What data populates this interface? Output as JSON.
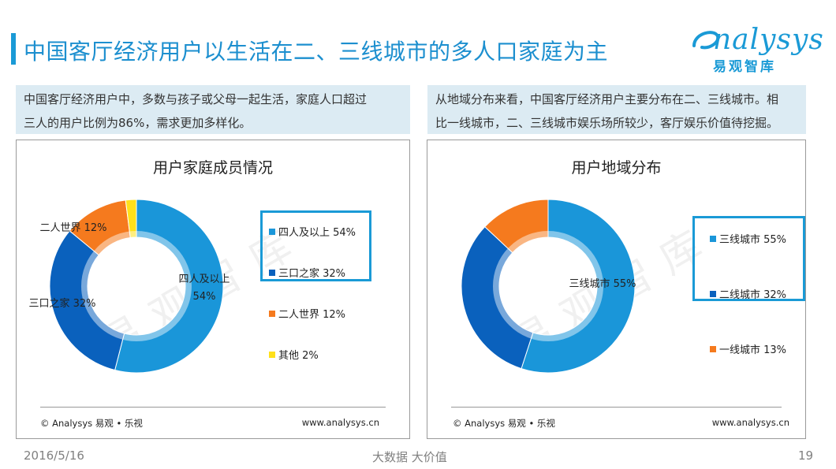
{
  "page": {
    "title": "中国客厅经济用户以生活在二、三线城市的多人口家庭为主",
    "logo_word": "nalysys",
    "logo_sub": "易观智库"
  },
  "left_desc": {
    "line1": "中国客厅经济用户中，多数与孩子或父母一起生活，家庭人口超过",
    "line2": "三人的用户比例为86%，需求更加多样化。"
  },
  "right_desc": {
    "line1": "从地域分布来看，中国客厅经济用户主要分布在二、三线城市。相",
    "line2": "比一线城市，二、三线城市娱乐场所较少，客厅娱乐价值待挖掘。"
  },
  "chart_data": [
    {
      "type": "pie",
      "style": "donut",
      "title": "用户家庭成员情况",
      "slices": [
        {
          "label": "四人及以上",
          "value": 54,
          "value_label": "54%",
          "color": "#1a96d9",
          "legend": "四人及以上  54%",
          "data_label": [
            "四人及以上",
            "54%"
          ]
        },
        {
          "label": "三口之家",
          "value": 32,
          "value_label": "32%",
          "color": "#0a61bd",
          "legend": "三口之家  32%",
          "data_label": [
            "三口之家  32%"
          ]
        },
        {
          "label": "二人世界",
          "value": 12,
          "value_label": "12%",
          "color": "#f57a1e",
          "legend": "二人世界  12%",
          "data_label": [
            "二人世界  12%"
          ]
        },
        {
          "label": "其他",
          "value": 2,
          "value_label": "2%",
          "color": "#ffe01a",
          "legend": "其他  2%",
          "data_label": []
        }
      ],
      "legend_position": "right",
      "source": "© Analysys 易观 • 乐视",
      "site": "www.analysys.cn"
    },
    {
      "type": "pie",
      "style": "donut",
      "title": "用户地域分布",
      "slices": [
        {
          "label": "三线城市",
          "value": 55,
          "value_label": "55%",
          "color": "#1a96d9",
          "legend": "三线城市  55%",
          "data_label": [
            "三线城市  55%"
          ]
        },
        {
          "label": "二线城市",
          "value": 32,
          "value_label": "32%",
          "color": "#0a61bd",
          "legend": "二线城市  32%",
          "data_label": []
        },
        {
          "label": "一线城市",
          "value": 13,
          "value_label": "13%",
          "color": "#f57a1e",
          "legend": "一线城市  13%",
          "data_label": []
        }
      ],
      "legend_position": "right",
      "source": "© Analysys 易观 • 乐视",
      "site": "www.analysys.cn"
    }
  ],
  "watermark": "易观智库",
  "footer": {
    "date": "2016/5/16",
    "slogan": "大数据    大价值",
    "page_number": "19"
  },
  "colors": {
    "accent": "#1a9ad6",
    "desc_bg": "#dcebf3"
  }
}
